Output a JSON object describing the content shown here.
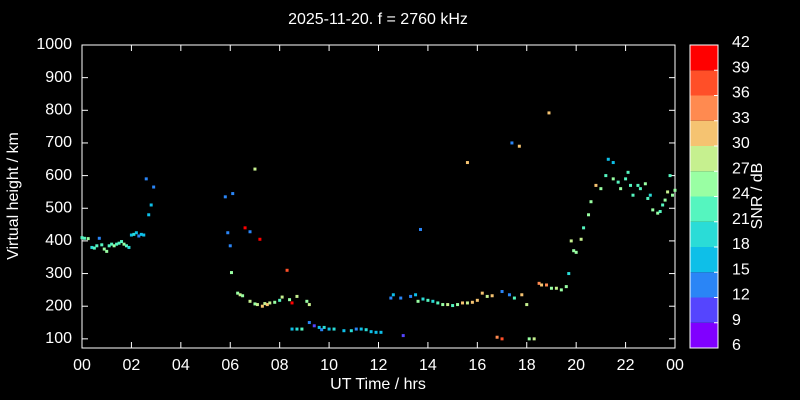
{
  "chart_data": {
    "type": "scatter",
    "title": "2025-11-20. f = 2760 kHz",
    "xlabel": "UT Time / hrs",
    "ylabel": "Virtual height / km",
    "xlim": [
      0,
      24
    ],
    "ylim": [
      72,
      1000
    ],
    "xticks": [
      {
        "value": 0,
        "label": "00"
      },
      {
        "value": 2,
        "label": "02"
      },
      {
        "value": 4,
        "label": "04"
      },
      {
        "value": 6,
        "label": "06"
      },
      {
        "value": 8,
        "label": "08"
      },
      10,
      12,
      14,
      16,
      18,
      20,
      22,
      {
        "value": 24,
        "label": "00"
      }
    ],
    "yticks": [
      100,
      200,
      300,
      400,
      500,
      600,
      700,
      800,
      900,
      1000
    ],
    "x": [
      0.0,
      0.1,
      0.25,
      0.4,
      0.5,
      0.6,
      0.7,
      0.8,
      0.9,
      1.0,
      1.1,
      1.2,
      1.3,
      1.4,
      1.5,
      1.6,
      1.7,
      1.8,
      1.9,
      2.0,
      2.1,
      2.2,
      2.3,
      2.4,
      2.5,
      2.6,
      2.7,
      2.8,
      2.9,
      5.8,
      5.9,
      6.0,
      6.1,
      6.05,
      6.3,
      6.4,
      6.5,
      6.6,
      6.8,
      7.0,
      7.2,
      6.8,
      7.0,
      7.1,
      7.3,
      7.4,
      7.5,
      7.6,
      7.8,
      8.0,
      8.1,
      8.3,
      8.4,
      8.5,
      8.5,
      8.7,
      8.9,
      8.7,
      9.1,
      9.2,
      9.2,
      9.4,
      9.6,
      9.7,
      9.8,
      10.0,
      10.2,
      10.6,
      10.9,
      11.1,
      11.3,
      11.5,
      11.7,
      11.9,
      12.1,
      12.5,
      12.6,
      12.9,
      13.0,
      13.3,
      13.5,
      13.6,
      13.7,
      13.8,
      14.0,
      14.2,
      14.4,
      14.6,
      14.8,
      15.0,
      15.2,
      15.4,
      15.6,
      15.6,
      15.8,
      16.0,
      16.2,
      16.4,
      16.6,
      16.8,
      17.0,
      17.0,
      17.3,
      17.4,
      17.5,
      17.7,
      17.8,
      18.0,
      18.1,
      18.3,
      18.5,
      18.6,
      18.8,
      18.9,
      19.0,
      19.2,
      19.4,
      19.6,
      19.7,
      19.8,
      19.9,
      20.0,
      20.2,
      20.3,
      20.5,
      20.6,
      20.8,
      21.0,
      21.2,
      21.3,
      21.5,
      21.5,
      21.7,
      21.8,
      22.0,
      22.1,
      22.2,
      22.3,
      22.5,
      22.6,
      22.8,
      22.9,
      23.0,
      23.1,
      23.3,
      23.4,
      23.5,
      23.6,
      23.7,
      23.8,
      23.9,
      24.0
    ],
    "y": [
      410,
      408,
      407,
      380,
      378,
      385,
      408,
      388,
      375,
      368,
      385,
      390,
      385,
      390,
      393,
      398,
      390,
      385,
      380,
      418,
      420,
      425,
      415,
      420,
      418,
      590,
      480,
      510,
      565,
      535,
      425,
      385,
      545,
      303,
      240,
      235,
      232,
      440,
      428,
      620,
      405,
      215,
      207,
      205,
      200,
      208,
      205,
      210,
      212,
      218,
      228,
      310,
      220,
      210,
      130,
      130,
      130,
      230,
      215,
      205,
      150,
      140,
      135,
      128,
      135,
      130,
      130,
      125,
      125,
      130,
      130,
      128,
      122,
      120,
      120,
      225,
      235,
      225,
      110,
      230,
      235,
      215,
      435,
      222,
      218,
      215,
      210,
      205,
      205,
      202,
      205,
      210,
      210,
      640,
      212,
      218,
      240,
      230,
      232,
      105,
      100,
      245,
      235,
      700,
      225,
      690,
      235,
      205,
      100,
      100,
      270,
      265,
      265,
      792,
      255,
      255,
      250,
      260,
      300,
      400,
      370,
      365,
      405,
      440,
      480,
      520,
      570,
      560,
      600,
      650,
      640,
      590,
      580,
      560,
      590,
      610,
      570,
      540,
      570,
      560,
      575,
      530,
      540,
      495,
      485,
      490,
      510,
      525,
      550,
      600,
      540,
      555
    ],
    "snr": [
      21,
      21,
      24,
      18,
      21,
      21,
      12,
      21,
      24,
      24,
      21,
      21,
      24,
      21,
      21,
      21,
      24,
      21,
      18,
      15,
      18,
      15,
      12,
      15,
      15,
      12,
      15,
      15,
      12,
      12,
      12,
      12,
      12,
      24,
      24,
      27,
      24,
      42,
      12,
      27,
      39,
      27,
      24,
      27,
      30,
      27,
      30,
      27,
      24,
      21,
      27,
      36,
      24,
      42,
      15,
      18,
      21,
      27,
      24,
      27,
      12,
      9,
      15,
      12,
      18,
      15,
      18,
      15,
      18,
      12,
      15,
      18,
      15,
      15,
      15,
      12,
      15,
      12,
      9,
      12,
      15,
      24,
      12,
      18,
      21,
      18,
      21,
      24,
      27,
      21,
      24,
      30,
      27,
      30,
      30,
      30,
      30,
      27,
      30,
      33,
      36,
      12,
      12,
      12,
      21,
      30,
      30,
      27,
      24,
      27,
      33,
      30,
      33,
      30,
      24,
      27,
      24,
      24,
      18,
      27,
      24,
      24,
      27,
      21,
      24,
      24,
      30,
      24,
      21,
      15,
      15,
      24,
      21,
      24,
      21,
      21,
      21,
      21,
      21,
      21,
      24,
      21,
      18,
      24,
      24,
      21,
      21,
      24,
      27,
      21,
      24,
      24
    ],
    "colorbar": {
      "label": "SNR / dB",
      "lim": [
        6,
        42
      ],
      "ticks": [
        6,
        9,
        12,
        15,
        18,
        21,
        24,
        27,
        30,
        33,
        36,
        39,
        42
      ],
      "colors": [
        "#8000ff",
        "#5545fe",
        "#2a85f6",
        "#0ebfe8",
        "#2adcd7",
        "#55f5bf",
        "#99ffa3",
        "#c6f08f",
        "#f5c371",
        "#ff8a50",
        "#ff4f28",
        "#ff0000"
      ]
    }
  }
}
